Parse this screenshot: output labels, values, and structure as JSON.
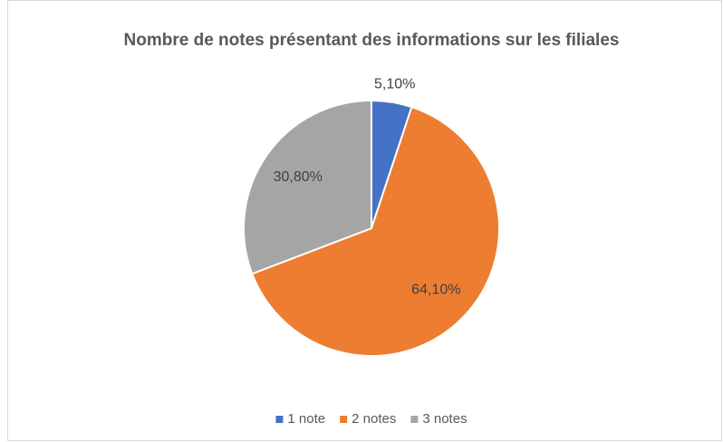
{
  "chart_data": {
    "type": "pie",
    "title": "Nombre de notes présentant des informations sur les filiales",
    "categories": [
      "1 note",
      "2 notes",
      "3 notes"
    ],
    "values": [
      5.1,
      64.1,
      30.8
    ],
    "value_labels": [
      "5,10%",
      "64,10%",
      "30,80%"
    ],
    "colors": [
      "#4472c4",
      "#ed7d31",
      "#a5a5a5"
    ],
    "legend": "bottom"
  }
}
